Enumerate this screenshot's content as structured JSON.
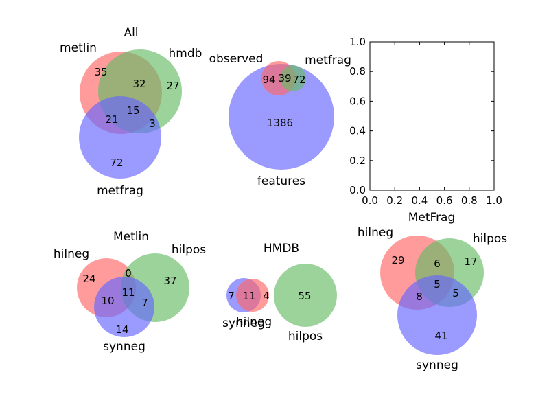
{
  "colors": {
    "red": "#ff6666",
    "green": "#66bb66",
    "blue": "#6666ff",
    "alpha": 0.65
  },
  "empty_plot": {
    "x_ticks": [
      "0.0",
      "0.2",
      "0.4",
      "0.6",
      "0.8",
      "1.0"
    ],
    "y_ticks": [
      "0.0",
      "0.2",
      "0.4",
      "0.6",
      "0.8",
      "1.0"
    ]
  },
  "venns": [
    {
      "title": "All",
      "sets": [
        {
          "name": "metlin",
          "color": "red"
        },
        {
          "name": "hmdb",
          "color": "green"
        },
        {
          "name": "metfrag",
          "color": "blue"
        }
      ],
      "counts": [
        "35",
        "27",
        "32",
        "72",
        "21",
        "3",
        "15"
      ]
    },
    {
      "title": "",
      "sets": [
        {
          "name": "observed",
          "color": "red"
        },
        {
          "name": "metfrag",
          "color": "green"
        },
        {
          "name": "features",
          "color": "blue"
        }
      ],
      "counts": [
        "94",
        "39",
        "72",
        "1386"
      ]
    },
    {
      "title": "Metlin",
      "sets": [
        {
          "name": "hilneg",
          "color": "red"
        },
        {
          "name": "hilpos",
          "color": "green"
        },
        {
          "name": "synneg",
          "color": "blue"
        }
      ],
      "counts": [
        "24",
        "37",
        "0",
        "14",
        "10",
        "7",
        "11"
      ]
    },
    {
      "title": "HMDB",
      "sets": [
        {
          "name": "hilneg",
          "color": "red"
        },
        {
          "name": "hilpos",
          "color": "green"
        },
        {
          "name": "synneg",
          "color": "blue"
        }
      ],
      "counts": [
        "4",
        "55",
        "7",
        "11"
      ]
    },
    {
      "title": "MetFrag",
      "sets": [
        {
          "name": "hilneg",
          "color": "red"
        },
        {
          "name": "hilpos",
          "color": "green"
        },
        {
          "name": "synneg",
          "color": "blue"
        }
      ],
      "counts": [
        "29",
        "17",
        "6",
        "41",
        "8",
        "5",
        "5"
      ]
    }
  ]
}
